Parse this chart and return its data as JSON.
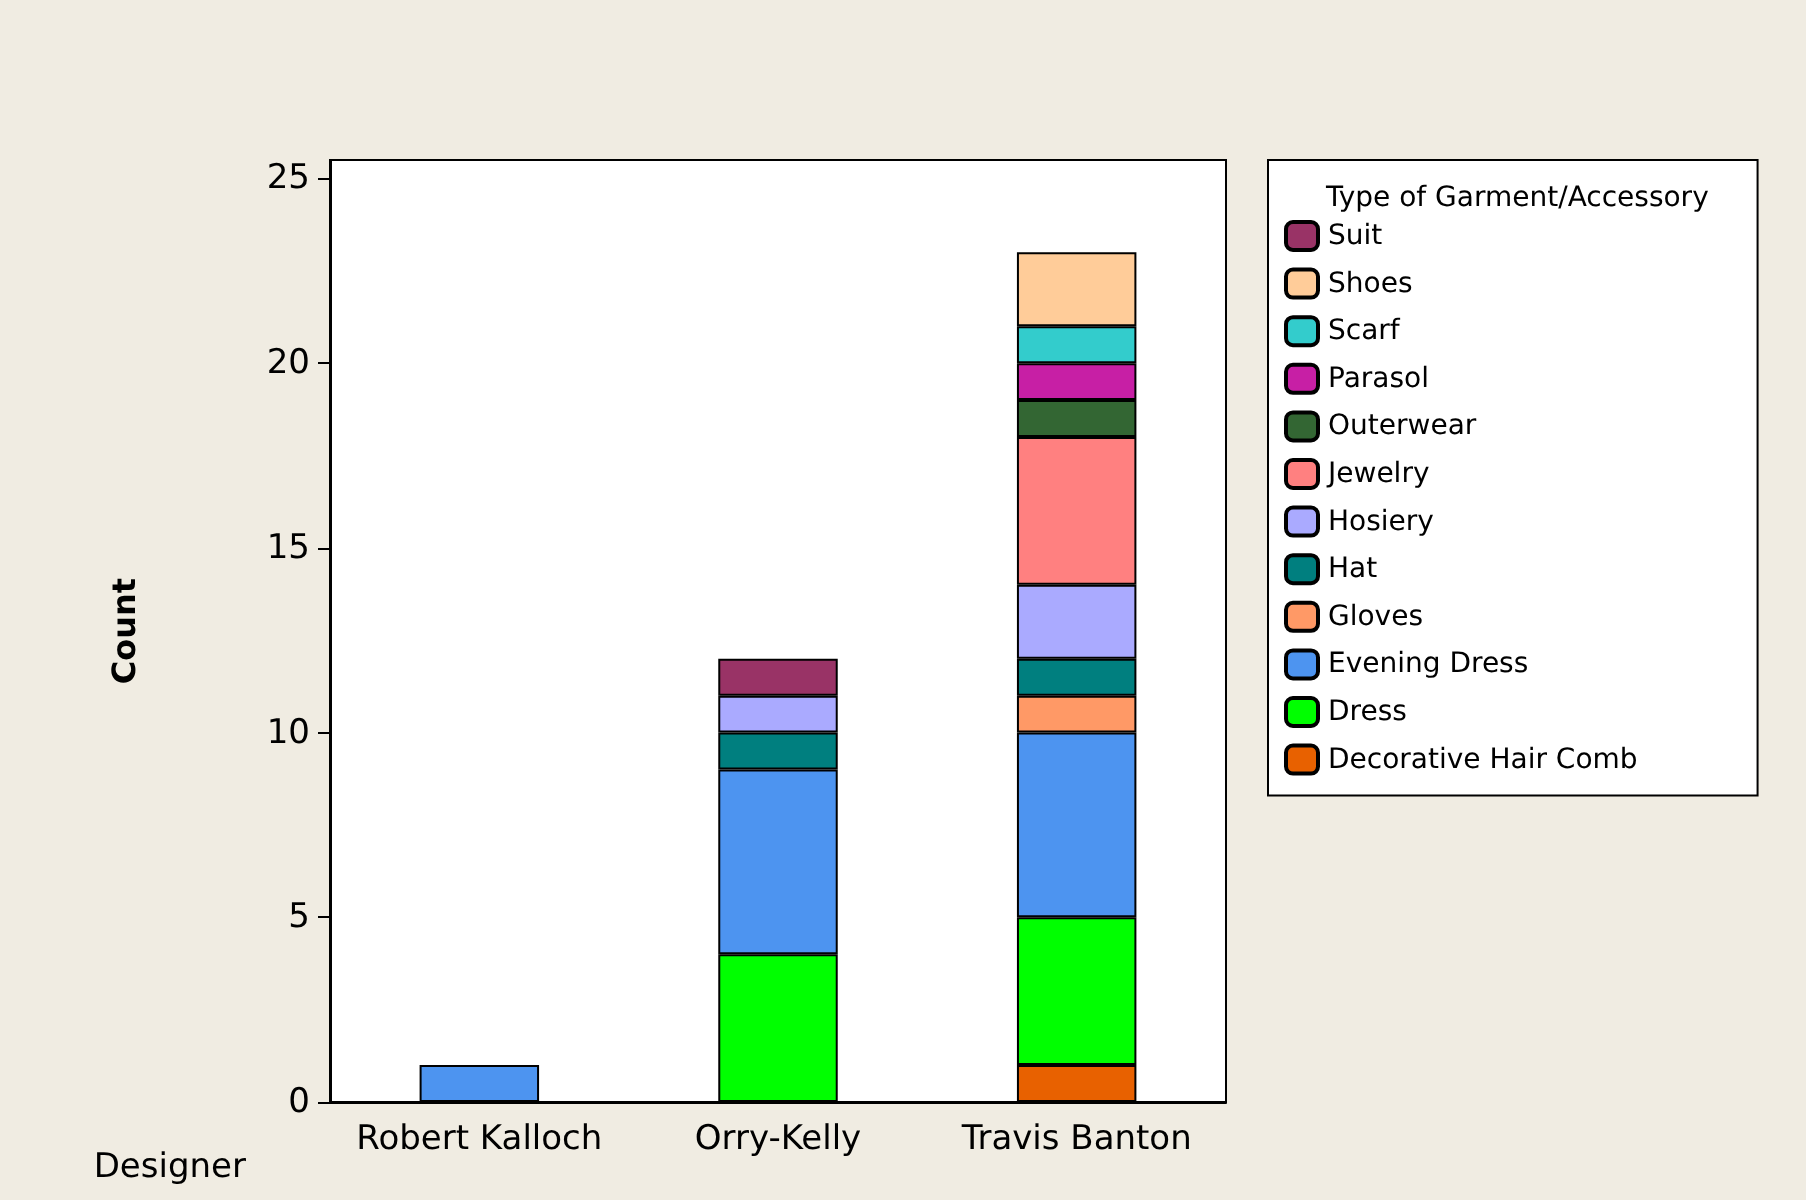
{
  "chart_data": {
    "type": "bar",
    "stacked": true,
    "xlabel": "Designer",
    "ylabel": "Count",
    "legend_title": "Type of Garment/Accessory",
    "legend": "right",
    "grid": false,
    "categories": [
      "Robert Kalloch",
      "Orry-Kelly",
      "Travis Banton"
    ],
    "ylim": [
      0,
      25.5
    ],
    "yticks": [
      0,
      5,
      10,
      15,
      20,
      25
    ],
    "series": [
      {
        "name": "Decorative Hair Comb",
        "color": "#e86100",
        "values": [
          null,
          null,
          1
        ]
      },
      {
        "name": "Dress",
        "color": "#00ff00",
        "values": [
          null,
          4,
          4
        ]
      },
      {
        "name": "Evening Dress",
        "color": "#4d94f0",
        "values": [
          1,
          5,
          5
        ]
      },
      {
        "name": "Gloves",
        "color": "#ff9966",
        "values": [
          null,
          null,
          1
        ]
      },
      {
        "name": "Hat",
        "color": "#007f7f",
        "values": [
          null,
          1,
          1
        ]
      },
      {
        "name": "Hosiery",
        "color": "#aaaaff",
        "values": [
          null,
          1,
          2
        ]
      },
      {
        "name": "Jewelry",
        "color": "#ff8080",
        "values": [
          null,
          null,
          4
        ]
      },
      {
        "name": "Outerwear",
        "color": "#336633",
        "values": [
          null,
          null,
          1
        ]
      },
      {
        "name": "Parasol",
        "color": "#c71fa5",
        "values": [
          null,
          null,
          1
        ]
      },
      {
        "name": "Scarf",
        "color": "#33cccc",
        "values": [
          null,
          null,
          1
        ]
      },
      {
        "name": "Shoes",
        "color": "#ffcc99",
        "values": [
          null,
          null,
          2
        ]
      },
      {
        "name": "Suit",
        "color": "#993366",
        "values": [
          null,
          1,
          null
        ]
      }
    ]
  }
}
